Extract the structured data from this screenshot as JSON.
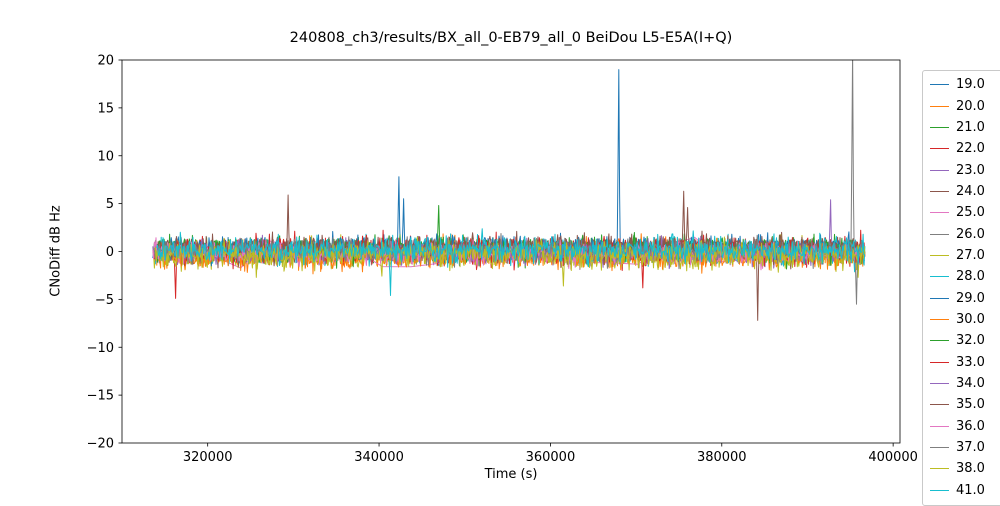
{
  "title": "240808_ch3/results/BX_all_0-EB79_all_0 BeiDou L5-E5A(I+Q)",
  "chart_data": {
    "type": "line",
    "title": "240808_ch3/results/BX_all_0-EB79_all_0 BeiDou L5-E5A(I+Q)",
    "xlabel": "Time (s)",
    "ylabel": "CNoDiff dB Hz",
    "xlim": [
      310000,
      400800
    ],
    "ylim": [
      -20,
      20
    ],
    "xticks": [
      320000,
      340000,
      360000,
      380000,
      400000
    ],
    "xtick_labels": [
      "320000",
      "340000",
      "360000",
      "380000",
      "400000"
    ],
    "yticks": [
      -20,
      -15,
      -10,
      -5,
      0,
      5,
      10,
      15,
      20
    ],
    "ytick_labels": [
      "−20",
      "−15",
      "−10",
      "−5",
      "0",
      "5",
      "10",
      "15",
      "20"
    ],
    "grid": false,
    "legend_position": "right-outside",
    "data_x_start": 313600,
    "data_x_end": 396700,
    "noise_points": 900,
    "series": [
      {
        "label": "19.0",
        "color": "#1f77b4",
        "seed": 11,
        "amp": 1.0,
        "mean": 0.1
      },
      {
        "label": "20.0",
        "color": "#ff7f0e",
        "seed": 12,
        "amp": 1.15,
        "mean": -0.2
      },
      {
        "label": "21.0",
        "color": "#2ca02c",
        "seed": 13,
        "amp": 1.2,
        "mean": 0.3,
        "spikes": [
          {
            "x": 347000,
            "y": 4.8
          }
        ]
      },
      {
        "label": "22.0",
        "color": "#d62728",
        "seed": 14,
        "amp": 1.2,
        "mean": 0.0,
        "spikes": [
          {
            "x": 316300,
            "y": -4.9
          }
        ]
      },
      {
        "label": "23.0",
        "color": "#9467bd",
        "seed": 15,
        "amp": 1.0,
        "mean": -0.3
      },
      {
        "label": "24.0",
        "color": "#8c564b",
        "seed": 16,
        "amp": 1.1,
        "mean": 0.2,
        "spikes": [
          {
            "x": 329400,
            "y": 5.9
          }
        ]
      },
      {
        "label": "25.0",
        "color": "#e377c2",
        "seed": 17,
        "amp": 1.8,
        "mean": -0.6,
        "sparse": true
      },
      {
        "label": "26.0",
        "color": "#7f7f7f",
        "seed": 18,
        "amp": 1.0,
        "mean": 0.0
      },
      {
        "label": "27.0",
        "color": "#bcbd22",
        "seed": 19,
        "amp": 1.3,
        "mean": -0.4
      },
      {
        "label": "28.0",
        "color": "#17becf",
        "seed": 20,
        "amp": 1.3,
        "mean": 0.1,
        "spikes": [
          {
            "x": 341300,
            "y": -4.6
          }
        ]
      },
      {
        "label": "29.0",
        "color": "#1f77b4",
        "seed": 21,
        "amp": 1.1,
        "mean": 0.4,
        "spikes": [
          {
            "x": 342300,
            "y": 7.8
          },
          {
            "x": 342900,
            "y": 5.5
          },
          {
            "x": 368000,
            "y": 19.0
          }
        ]
      },
      {
        "label": "30.0",
        "color": "#ff7f0e",
        "seed": 22,
        "amp": 1.2,
        "mean": -0.5
      },
      {
        "label": "32.0",
        "color": "#2ca02c",
        "seed": 23,
        "amp": 1.1,
        "mean": 0.2
      },
      {
        "label": "33.0",
        "color": "#d62728",
        "seed": 24,
        "amp": 1.3,
        "mean": 0.0,
        "spikes": [
          {
            "x": 370800,
            "y": -3.8
          }
        ]
      },
      {
        "label": "34.0",
        "color": "#9467bd",
        "seed": 25,
        "amp": 1.0,
        "mean": -0.1,
        "spikes": [
          {
            "x": 392700,
            "y": 5.4
          }
        ]
      },
      {
        "label": "35.0",
        "color": "#8c564b",
        "seed": 26,
        "amp": 1.2,
        "mean": 0.3,
        "spikes": [
          {
            "x": 375600,
            "y": 6.3
          },
          {
            "x": 376000,
            "y": 4.6
          },
          {
            "x": 384200,
            "y": -7.2
          }
        ]
      },
      {
        "label": "36.0",
        "color": "#e377c2",
        "seed": 27,
        "amp": 1.0,
        "mean": -0.2
      },
      {
        "label": "37.0",
        "color": "#7f7f7f",
        "seed": 28,
        "amp": 1.1,
        "mean": 0.1,
        "spikes": [
          {
            "x": 395300,
            "y": 21.0
          },
          {
            "x": 395700,
            "y": -5.5
          }
        ]
      },
      {
        "label": "38.0",
        "color": "#bcbd22",
        "seed": 29,
        "amp": 1.2,
        "mean": -0.3,
        "spikes": [
          {
            "x": 361500,
            "y": -3.6
          }
        ]
      },
      {
        "label": "41.0",
        "color": "#17becf",
        "seed": 30,
        "amp": 1.1,
        "mean": 0.2
      }
    ]
  }
}
